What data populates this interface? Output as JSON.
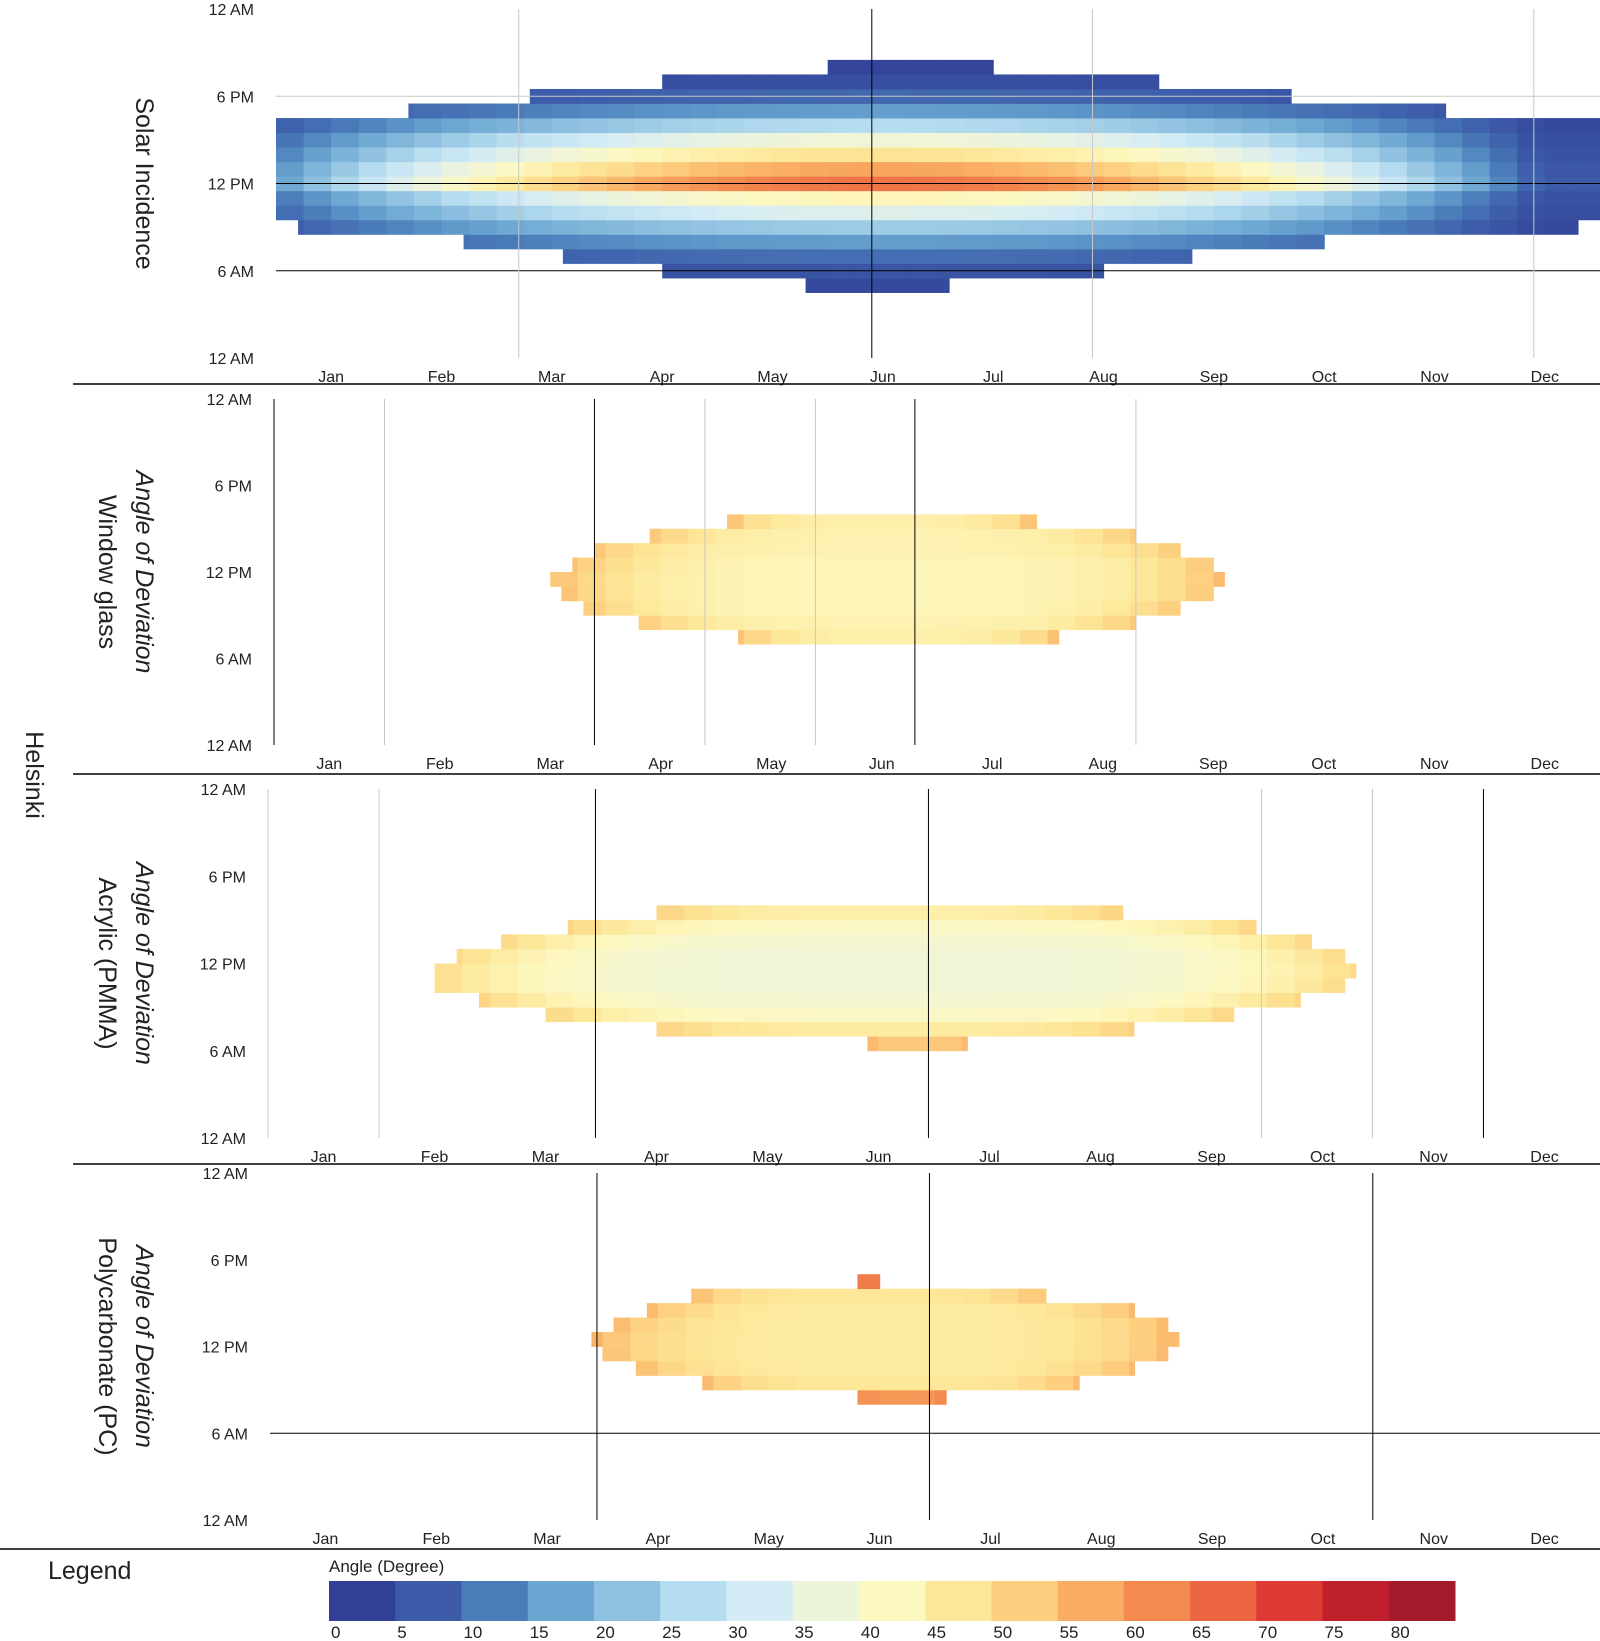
{
  "figure": {
    "city": "Helsinki",
    "legend_title": "Legend",
    "colorbar_title": "Angle (Degree)"
  },
  "colors": {
    "scale": [
      "#323f96",
      "#3c5aa8",
      "#4a7cba",
      "#6aa6d1",
      "#8ec0e0",
      "#b5dcef",
      "#d4ecf5",
      "#edf4dc",
      "#fdf8c0",
      "#fde89a",
      "#fdd080",
      "#f9ad62",
      "#f38a4e",
      "#ec6643",
      "#dc3a33",
      "#c0202c",
      "#a31a2a"
    ],
    "grid": "#000000",
    "grid_light": "#c8c8c8"
  },
  "chart_data": [
    {
      "type": "heatmap",
      "panel": "solar",
      "label_lines": [
        "Solar Incidence"
      ],
      "label_italic": [
        false
      ],
      "categories": [
        "Jan",
        "Feb",
        "Mar",
        "Apr",
        "May",
        "Jun",
        "Jul",
        "Aug",
        "Sep",
        "Oct",
        "Nov",
        "Dec"
      ],
      "yticks": [
        "12 AM",
        "6 PM",
        "12 PM",
        "6 AM",
        "12 AM"
      ],
      "ylim": [
        0,
        24
      ],
      "vlines_dark": [
        5.4
      ],
      "vlines_light": [
        2.2,
        7.4,
        11.4
      ],
      "hlines_dark": [
        12,
        6
      ],
      "hlines_light": [
        18
      ],
      "rows": [
        {
          "h0": 4.5,
          "h1": 5.5,
          "x0": 4.8,
          "x1": 6.1,
          "peak": 2
        },
        {
          "h0": 5.5,
          "h1": 6.5,
          "x0": 3.5,
          "x1": 7.5,
          "peak": 4
        },
        {
          "h0": 6.5,
          "h1": 7.5,
          "x0": 2.6,
          "x1": 8.3,
          "peak": 8
        },
        {
          "h0": 7.5,
          "h1": 8.5,
          "x0": 1.7,
          "x1": 9.5,
          "peak": 14
        },
        {
          "h0": 8.5,
          "h1": 9.5,
          "x0": 0.2,
          "x1": 11.8,
          "peak": 22
        },
        {
          "h0": 9.5,
          "h1": 10.5,
          "x0": 0.0,
          "x1": 12.0,
          "peak": 32
        },
        {
          "h0": 10.5,
          "h1": 11.5,
          "x0": 0.0,
          "x1": 12.0,
          "peak": 41
        },
        {
          "h0": 11.5,
          "h1": 12.5,
          "x0": 0.0,
          "x1": 12.0,
          "peak": 63
        },
        {
          "h0": 12.5,
          "h1": 13.5,
          "x0": 0.0,
          "x1": 12.0,
          "peak": 56
        },
        {
          "h0": 13.5,
          "h1": 14.5,
          "x0": 0.0,
          "x1": 12.0,
          "peak": 46
        },
        {
          "h0": 14.5,
          "h1": 15.5,
          "x0": 0.0,
          "x1": 12.0,
          "peak": 36
        },
        {
          "h0": 15.5,
          "h1": 16.5,
          "x0": 0.0,
          "x1": 12.0,
          "peak": 25
        },
        {
          "h0": 16.5,
          "h1": 17.5,
          "x0": 1.2,
          "x1": 10.6,
          "peak": 14
        },
        {
          "h0": 17.5,
          "h1": 18.5,
          "x0": 2.3,
          "x1": 9.2,
          "peak": 7
        },
        {
          "h0": 18.5,
          "h1": 19.5,
          "x0": 3.5,
          "x1": 8.0,
          "peak": 3
        },
        {
          "h0": 19.5,
          "h1": 20.5,
          "x0": 5.0,
          "x1": 6.5,
          "peak": 1
        }
      ]
    },
    {
      "type": "heatmap",
      "panel": "window-glass",
      "label_lines": [
        "Angle of Deviation",
        "Window glass"
      ],
      "label_italic": [
        true,
        false
      ],
      "categories": [
        "Jan",
        "Feb",
        "Mar",
        "Apr",
        "May",
        "Jun",
        "Jul",
        "Aug",
        "Sep",
        "Oct",
        "Nov",
        "Dec"
      ],
      "yticks": [
        "12 AM",
        "6 PM",
        "12 PM",
        "6 AM",
        "12 AM"
      ],
      "ylim": [
        0,
        24
      ],
      "vlines_dark": [
        0,
        2.9,
        5.8
      ],
      "vlines_light": [
        1.0,
        3.9,
        4.9,
        7.8
      ],
      "hlines_dark": [],
      "hlines_light": [],
      "rows": [
        {
          "h0": 7.0,
          "h1": 8.0,
          "x0": 4.2,
          "x1": 7.1,
          "center": 43,
          "edge": 52
        },
        {
          "h0": 8.0,
          "h1": 9.0,
          "x0": 3.3,
          "x1": 7.8,
          "center": 42,
          "edge": 51
        },
        {
          "h0": 9.0,
          "h1": 10.0,
          "x0": 2.8,
          "x1": 8.2,
          "center": 41,
          "edge": 51
        },
        {
          "h0": 10.0,
          "h1": 11.0,
          "x0": 2.6,
          "x1": 8.5,
          "center": 41,
          "edge": 52
        },
        {
          "h0": 11.0,
          "h1": 12.0,
          "x0": 2.5,
          "x1": 8.6,
          "center": 41,
          "edge": 53
        },
        {
          "h0": 12.0,
          "h1": 13.0,
          "x0": 2.7,
          "x1": 8.5,
          "center": 41,
          "edge": 52
        },
        {
          "h0": 13.0,
          "h1": 14.0,
          "x0": 2.9,
          "x1": 8.2,
          "center": 42,
          "edge": 51
        },
        {
          "h0": 14.0,
          "h1": 15.0,
          "x0": 3.4,
          "x1": 7.8,
          "center": 42,
          "edge": 51
        },
        {
          "h0": 15.0,
          "h1": 16.0,
          "x0": 4.1,
          "x1": 6.9,
          "center": 43,
          "edge": 52
        }
      ]
    },
    {
      "type": "heatmap",
      "panel": "acrylic",
      "label_lines": [
        "Angle of Deviation",
        "Acrylic (PMMA)"
      ],
      "label_italic": [
        true,
        false
      ],
      "categories": [
        "Jan",
        "Feb",
        "Mar",
        "Apr",
        "May",
        "Jun",
        "Jul",
        "Aug",
        "Sep",
        "Oct",
        "Nov",
        "Dec"
      ],
      "yticks": [
        "12 AM",
        "6 PM",
        "12 PM",
        "6 AM",
        "12 AM"
      ],
      "ylim": [
        0,
        24
      ],
      "vlines_dark": [
        2.95,
        5.95,
        10.95
      ],
      "vlines_light": [
        0,
        1.0,
        8.95,
        9.95
      ],
      "hlines_dark": [],
      "hlines_light": [],
      "rows": [
        {
          "h0": 6.0,
          "h1": 7.0,
          "x0": 5.4,
          "x1": 6.3,
          "center": 51,
          "edge": 53
        },
        {
          "h0": 7.0,
          "h1": 8.0,
          "x0": 3.5,
          "x1": 7.8,
          "center": 44,
          "edge": 50
        },
        {
          "h0": 8.0,
          "h1": 9.0,
          "x0": 2.5,
          "x1": 8.7,
          "center": 39,
          "edge": 49
        },
        {
          "h0": 9.0,
          "h1": 10.0,
          "x0": 1.9,
          "x1": 9.3,
          "center": 37,
          "edge": 49
        },
        {
          "h0": 10.0,
          "h1": 11.0,
          "x0": 1.5,
          "x1": 9.7,
          "center": 36,
          "edge": 48
        },
        {
          "h0": 11.0,
          "h1": 12.0,
          "x0": 1.5,
          "x1": 9.8,
          "center": 36,
          "edge": 48
        },
        {
          "h0": 12.0,
          "h1": 13.0,
          "x0": 1.7,
          "x1": 9.7,
          "center": 36,
          "edge": 48
        },
        {
          "h0": 13.0,
          "h1": 14.0,
          "x0": 2.1,
          "x1": 9.4,
          "center": 37,
          "edge": 48
        },
        {
          "h0": 14.0,
          "h1": 15.0,
          "x0": 2.7,
          "x1": 8.9,
          "center": 39,
          "edge": 49
        },
        {
          "h0": 15.0,
          "h1": 16.0,
          "x0": 3.5,
          "x1": 7.7,
          "center": 43,
          "edge": 50
        }
      ]
    },
    {
      "type": "heatmap",
      "panel": "polycarbonate",
      "label_lines": [
        "Angle of Deviation",
        "Polycarbonate (PC)"
      ],
      "label_italic": [
        true,
        false
      ],
      "categories": [
        "Jan",
        "Feb",
        "Mar",
        "Apr",
        "May",
        "Jun",
        "Jul",
        "Aug",
        "Sep",
        "Oct",
        "Nov",
        "Dec"
      ],
      "yticks": [
        "12 AM",
        "6 PM",
        "12 PM",
        "6 AM",
        "12 AM"
      ],
      "ylim": [
        0,
        24
      ],
      "vlines_dark": [
        2.95,
        5.95,
        9.95
      ],
      "vlines_light": [],
      "hlines_dark": [
        6
      ],
      "hlines_light": [],
      "rows": [
        {
          "h0": 8.0,
          "h1": 9.0,
          "x0": 5.3,
          "x1": 6.1,
          "center": 58,
          "edge": 60
        },
        {
          "h0": 9.0,
          "h1": 10.0,
          "x0": 3.9,
          "x1": 7.3,
          "center": 45,
          "edge": 53
        },
        {
          "h0": 10.0,
          "h1": 11.0,
          "x0": 3.3,
          "x1": 7.8,
          "center": 44,
          "edge": 53
        },
        {
          "h0": 11.0,
          "h1": 12.0,
          "x0": 3.0,
          "x1": 8.1,
          "center": 44,
          "edge": 53
        },
        {
          "h0": 12.0,
          "h1": 13.0,
          "x0": 2.9,
          "x1": 8.2,
          "center": 44,
          "edge": 54
        },
        {
          "h0": 13.0,
          "h1": 14.0,
          "x0": 3.1,
          "x1": 8.1,
          "center": 44,
          "edge": 53
        },
        {
          "h0": 14.0,
          "h1": 15.0,
          "x0": 3.4,
          "x1": 7.8,
          "center": 44,
          "edge": 53
        },
        {
          "h0": 15.0,
          "h1": 16.0,
          "x0": 3.8,
          "x1": 7.0,
          "center": 45,
          "edge": 53
        },
        {
          "h0": 16.0,
          "h1": 17.0,
          "x0": 5.3,
          "x1": 5.5,
          "center": 62,
          "edge": 62
        }
      ]
    },
    {
      "type": "colorbar",
      "title": "Angle (Degree)",
      "ticks": [
        "0",
        "5",
        "10",
        "15",
        "20",
        "25",
        "30",
        "35",
        "40",
        "45",
        "50",
        "55",
        "60",
        "65",
        "70",
        "75",
        "80"
      ],
      "values": [
        0,
        5,
        10,
        15,
        20,
        25,
        30,
        35,
        40,
        45,
        50,
        55,
        60,
        65,
        70,
        75,
        80
      ]
    }
  ]
}
